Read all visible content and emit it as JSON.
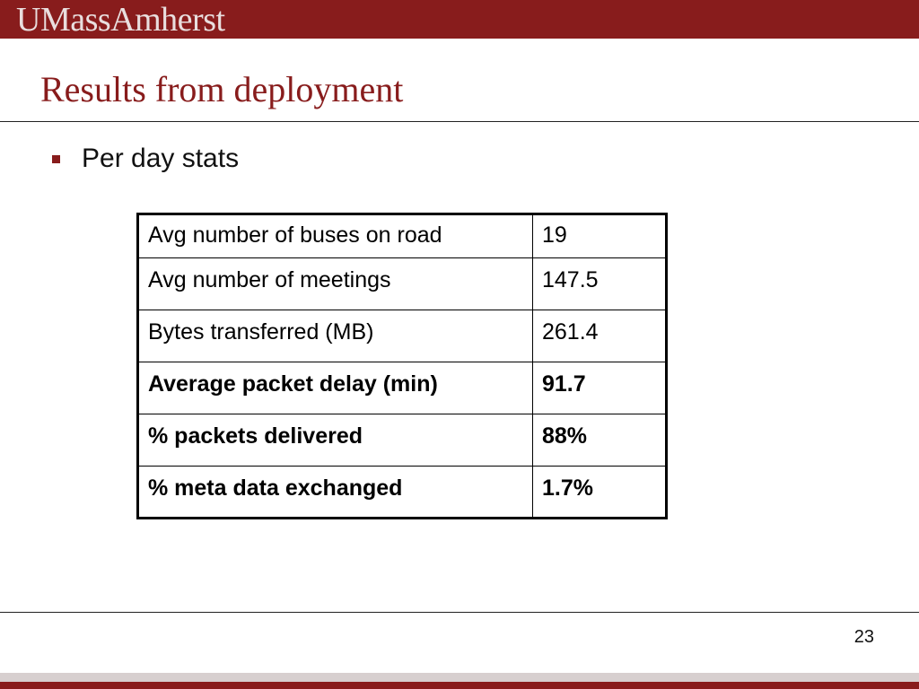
{
  "header": {
    "logo_text": "UMassAmherst"
  },
  "slide": {
    "title": "Results from deployment",
    "bullet": "Per day stats",
    "page_number": "23"
  },
  "table": {
    "rows": [
      {
        "label": "Avg number of buses on road",
        "value": "19",
        "bold": false
      },
      {
        "label": "Avg number of meetings",
        "value": "147.5",
        "bold": false
      },
      {
        "label": "Bytes transferred (MB)",
        "value": "261.4",
        "bold": false
      },
      {
        "label": "Average packet delay (min)",
        "value": "91.7",
        "bold": true
      },
      {
        "label": "% packets delivered",
        "value": "88%",
        "bold": true
      },
      {
        "label": "% meta data exchanged",
        "value": "1.7%",
        "bold": true
      }
    ]
  },
  "colors": {
    "brand_maroon": "#881c1c",
    "footer_gray": "#d7cfcf"
  }
}
